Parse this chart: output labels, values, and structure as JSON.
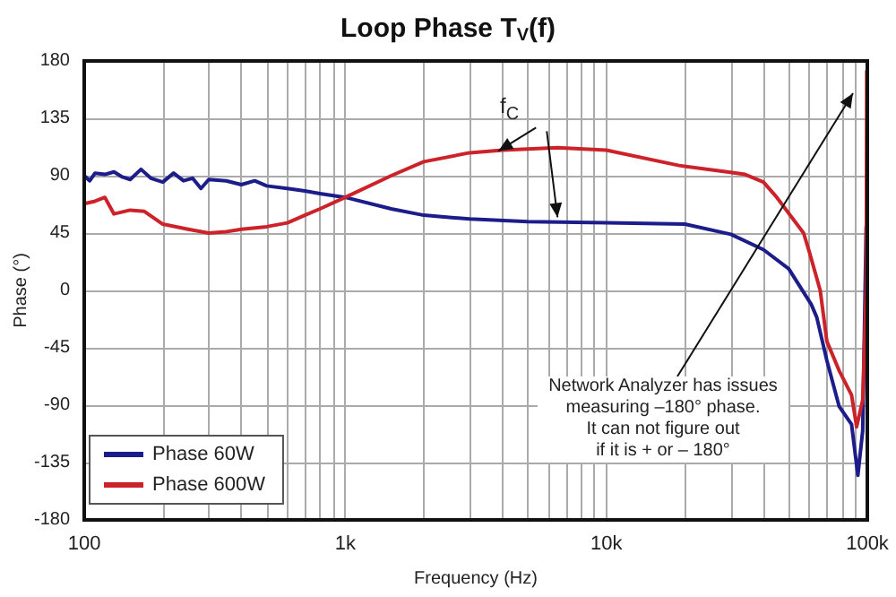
{
  "chart_data": {
    "type": "line",
    "title": "Loop Phase T$_{V}$(f)",
    "xlabel": "Frequency (Hz)",
    "ylabel": "Phase (°)",
    "log": "x",
    "xlim": [
      100,
      100000
    ],
    "xticks": [
      {
        "value": 100,
        "label": "100"
      },
      {
        "value": 200,
        "label": null
      },
      {
        "value": 300,
        "label": null
      },
      {
        "value": 400,
        "label": null
      },
      {
        "value": 500,
        "label": null
      },
      {
        "value": 600,
        "label": null
      },
      {
        "value": 700,
        "label": null
      },
      {
        "value": 800,
        "label": null
      },
      {
        "value": 900,
        "label": null
      },
      {
        "value": 1000,
        "label": "1k"
      },
      {
        "value": 2000,
        "label": null
      },
      {
        "value": 3000,
        "label": null
      },
      {
        "value": 4000,
        "label": null
      },
      {
        "value": 5000,
        "label": null
      },
      {
        "value": 6000,
        "label": null
      },
      {
        "value": 7000,
        "label": null
      },
      {
        "value": 8000,
        "label": null
      },
      {
        "value": 9000,
        "label": null
      },
      {
        "value": 10000,
        "label": "10k"
      },
      {
        "value": 20000,
        "label": null
      },
      {
        "value": 30000,
        "label": null
      },
      {
        "value": 40000,
        "label": null
      },
      {
        "value": 50000,
        "label": null
      },
      {
        "value": 60000,
        "label": null
      },
      {
        "value": 70000,
        "label": null
      },
      {
        "value": 80000,
        "label": null
      },
      {
        "value": 90000,
        "label": null
      },
      {
        "value": 100000,
        "label": "100k"
      }
    ],
    "ylim": [
      -180,
      180
    ],
    "yticks": [
      -180,
      -135,
      -90,
      -45,
      0,
      45,
      90,
      135,
      180
    ],
    "grid": true,
    "legend": "bottom left",
    "marker": "none",
    "line_style": "solid",
    "series": [
      {
        "name": "Phase 60W",
        "color": "#1c1c8a",
        "x": [
          100,
          105,
          110,
          120,
          130,
          140,
          150,
          165,
          180,
          200,
          220,
          240,
          260,
          280,
          300,
          350,
          400,
          450,
          500,
          600,
          700,
          800,
          1000,
          1500,
          2000,
          3000,
          5000,
          10000,
          20000,
          30000,
          40000,
          50000,
          61000,
          64000,
          70000,
          78000,
          87000,
          92000,
          96000,
          99000
        ],
        "values": [
          90,
          86,
          92,
          91,
          93,
          89,
          87,
          95,
          88,
          85,
          92,
          86,
          88,
          80,
          87,
          86,
          83,
          86,
          82,
          80,
          78,
          76,
          73,
          64,
          59,
          56,
          54,
          53,
          52,
          44,
          32,
          17,
          -11,
          -21,
          -55,
          -91,
          -105,
          -145,
          -110,
          50
        ]
      },
      {
        "name": "Phase 600W",
        "color": "#cc2229",
        "x": [
          100,
          110,
          120,
          130,
          150,
          170,
          200,
          250,
          300,
          350,
          400,
          500,
          600,
          700,
          800,
          1000,
          1500,
          2000,
          3000,
          4000,
          6500,
          10000,
          19000,
          29000,
          34000,
          40000,
          45000,
          57000,
          60000,
          66000,
          70000,
          78000,
          87000,
          91000,
          96000,
          99000,
          99500
        ],
        "values": [
          68,
          70,
          73,
          60,
          63,
          62,
          52,
          48,
          45,
          46,
          48,
          50,
          53,
          59,
          64,
          73,
          90,
          101,
          108,
          110,
          112,
          110,
          98,
          93,
          91,
          85,
          73,
          45,
          30,
          0,
          -40,
          -63,
          -82,
          -107,
          -86,
          0,
          172
        ]
      }
    ],
    "annotations": [
      {
        "text": "f$_{C}$",
        "x": 3800,
        "y": 108
      },
      "Network Analyzer has issues\nmeasuring –180° phase.\nIt can not figure out\nif it is + or – 180°"
    ]
  }
}
